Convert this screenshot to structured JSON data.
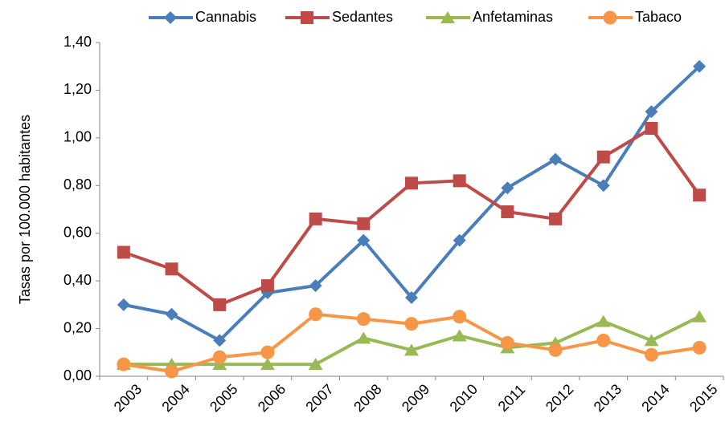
{
  "chart_data": {
    "type": "line",
    "y_label": "Tasas por 100.000 habitantes",
    "categories": [
      "2003",
      "2004",
      "2005",
      "2006",
      "2007",
      "2008",
      "2009",
      "2010",
      "2011",
      "2012",
      "2013",
      "2014",
      "2015"
    ],
    "series": [
      {
        "name": "Cannabis",
        "color": "#4a7ebb",
        "marker": "diamond",
        "values": [
          0.3,
          0.26,
          0.15,
          0.35,
          0.38,
          0.57,
          0.33,
          0.57,
          0.79,
          0.91,
          0.8,
          1.11,
          1.3
        ]
      },
      {
        "name": "Sedantes",
        "color": "#be4b48",
        "marker": "square",
        "values": [
          0.52,
          0.45,
          0.3,
          0.38,
          0.66,
          0.64,
          0.81,
          0.82,
          0.69,
          0.66,
          0.92,
          1.04,
          0.76
        ]
      },
      {
        "name": "Anfetaminas",
        "color": "#98b954",
        "marker": "triangle",
        "values": [
          0.05,
          0.05,
          0.05,
          0.05,
          0.05,
          0.16,
          0.11,
          0.17,
          0.12,
          0.14,
          0.23,
          0.15,
          0.25
        ]
      },
      {
        "name": "Tabaco",
        "color": "#f79646",
        "marker": "circle",
        "values": [
          0.05,
          0.02,
          0.08,
          0.1,
          0.26,
          0.24,
          0.22,
          0.25,
          0.14,
          0.11,
          0.15,
          0.09,
          0.12
        ]
      }
    ],
    "ylim": [
      0,
      1.4
    ],
    "yticks": [
      {
        "value": 0,
        "label": "0,00"
      },
      {
        "value": 0.2,
        "label": "0,20"
      },
      {
        "value": 0.4,
        "label": "0,40"
      },
      {
        "value": 0.6,
        "label": "0,60"
      },
      {
        "value": 0.8,
        "label": "0,80"
      },
      {
        "value": 1.0,
        "label": "1,00"
      },
      {
        "value": 1.2,
        "label": "1,20"
      },
      {
        "value": 1.4,
        "label": "1,40"
      }
    ],
    "grid": false,
    "legend": "top"
  }
}
